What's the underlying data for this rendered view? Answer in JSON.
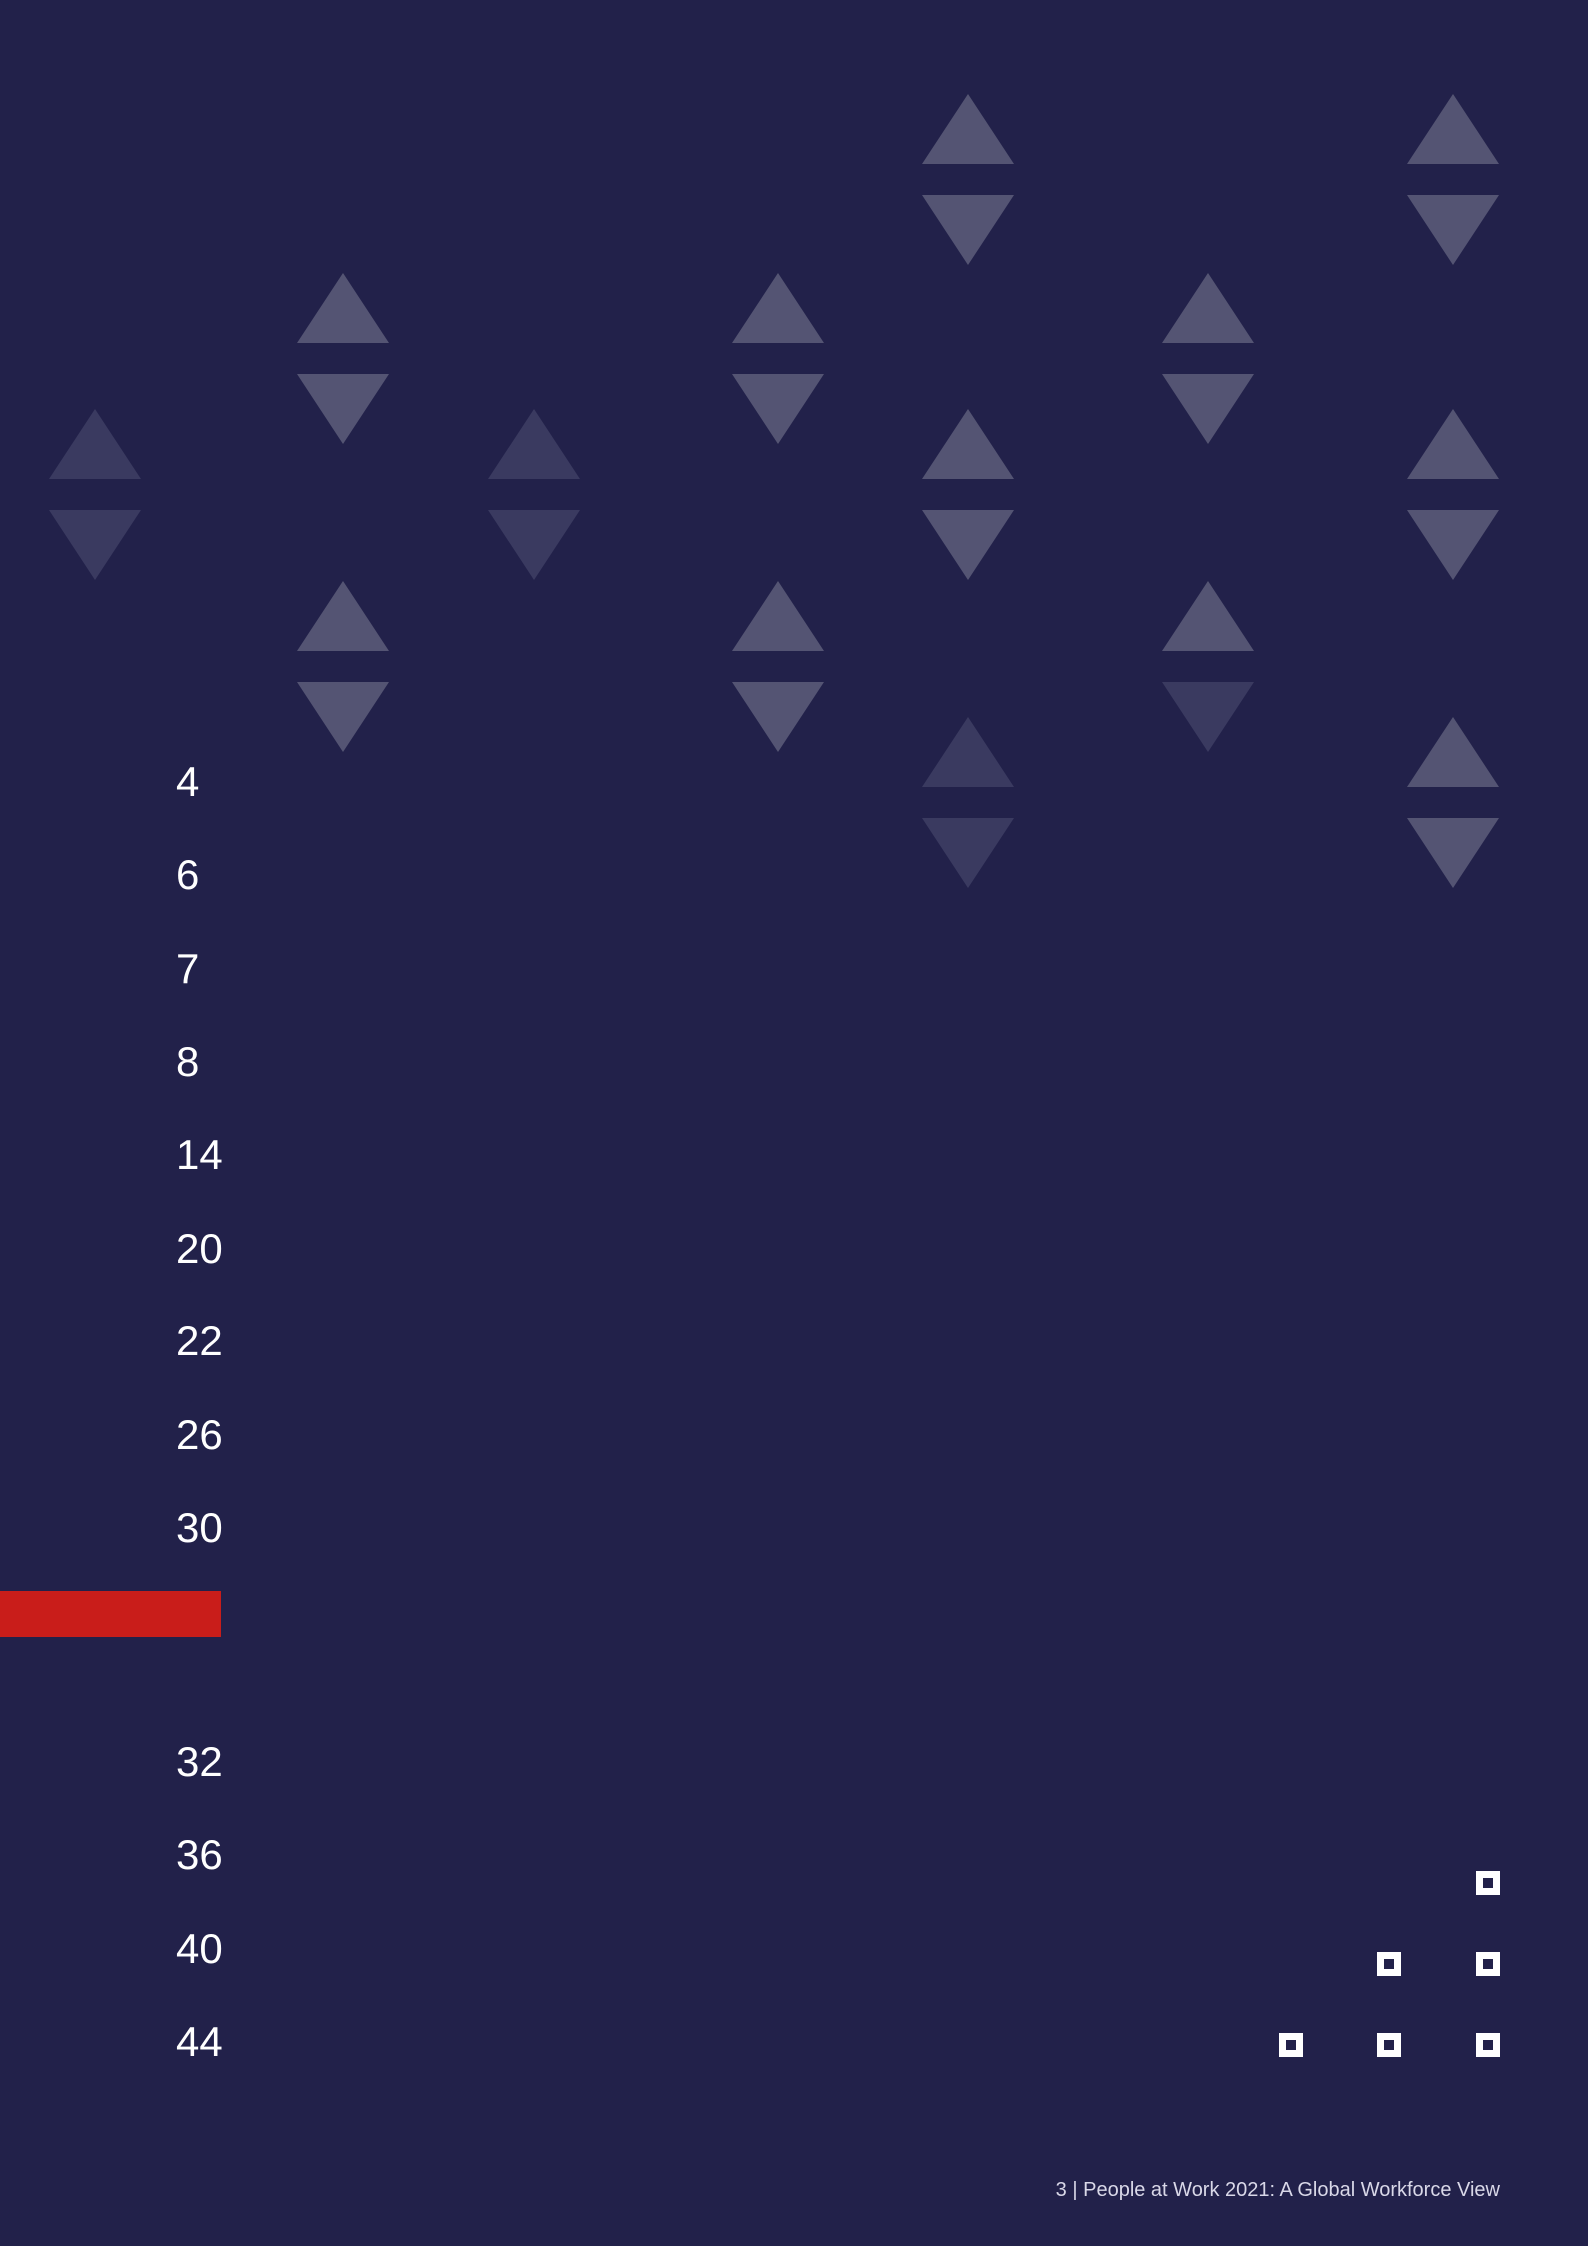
{
  "colors": {
    "background": "#22214a",
    "accent_red": "#c91d1a",
    "triangle_light": "#545473",
    "triangle_dim": "#3a3a60",
    "square_icon": "#ffffff"
  },
  "toc": {
    "page_numbers": [
      "4",
      "6",
      "7",
      "8",
      "14",
      "20",
      "22",
      "26",
      "30",
      "32",
      "36",
      "40",
      "44"
    ]
  },
  "decor": {
    "pattern_icon": "triangle-pair-icon",
    "logo_icon": "square-grid-logo-icon"
  },
  "footer": {
    "text": "3 | People at Work 2021: A Global Workforce View"
  }
}
